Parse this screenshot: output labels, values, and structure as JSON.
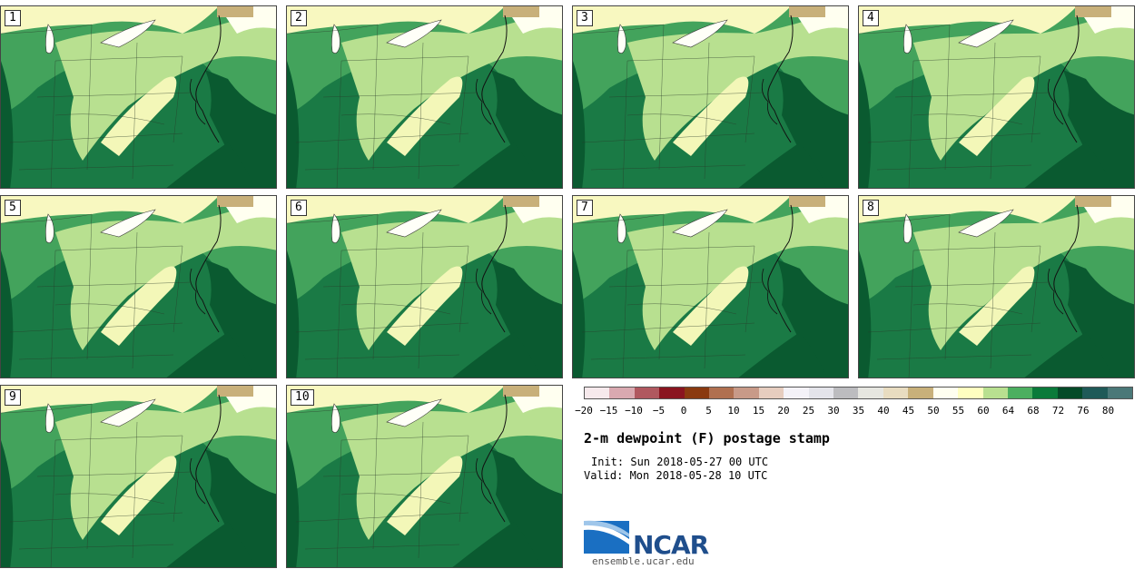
{
  "panels": [
    {
      "label": "1"
    },
    {
      "label": "2"
    },
    {
      "label": "3"
    },
    {
      "label": "4"
    },
    {
      "label": "5"
    },
    {
      "label": "6"
    },
    {
      "label": "7"
    },
    {
      "label": "8"
    },
    {
      "label": "9"
    },
    {
      "label": "10"
    }
  ],
  "colorbar": {
    "colors": [
      "#f6e9ec",
      "#d9a9b0",
      "#b0585f",
      "#8a1520",
      "#8a3a10",
      "#b07050",
      "#c89a88",
      "#e6cdbf",
      "#f4f2f8",
      "#e4e4ea",
      "#bcbcbf",
      "#e6e6e0",
      "#e8dcc0",
      "#c8b07a",
      "#fffff0",
      "#ffffc0",
      "#b8e090",
      "#4caf60",
      "#0a7a3a",
      "#044a28",
      "#1f5a58",
      "#4a7878"
    ],
    "ticks": [
      "−20",
      "−15",
      "−10",
      "−5",
      "0",
      "5",
      "10",
      "15",
      "20",
      "25",
      "30",
      "35",
      "40",
      "45",
      "50",
      "55",
      "60",
      "64",
      "68",
      "72",
      "76",
      "80"
    ]
  },
  "title": "2-m dewpoint (F) postage stamp",
  "init": "Init: Sun 2018-05-27 00 UTC",
  "valid": "Valid: Mon 2018-05-28 10 UTC",
  "logo_text": "NCAR",
  "site": "ensemble.ucar.edu"
}
